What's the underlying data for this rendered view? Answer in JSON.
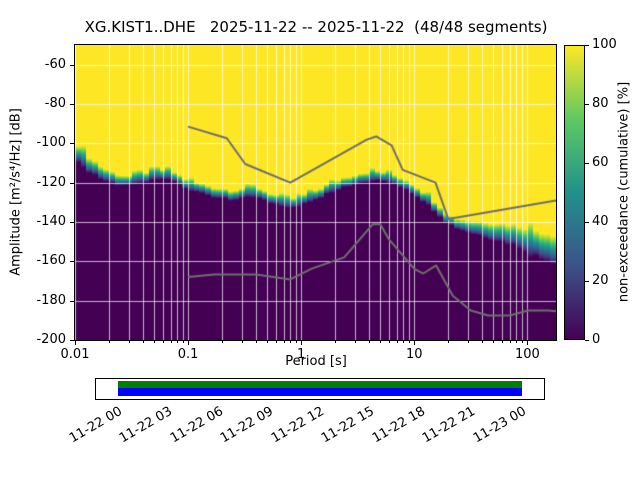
{
  "chart_data": {
    "type": "heatmap",
    "title": "XG.KIST1..DHE   2025-11-22 -- 2025-11-22  (48/48 segments)",
    "station_id": "XG.KIST1..DHE",
    "date_range": "2025-11-22 -- 2025-11-22",
    "segments": "48/48 segments",
    "xlabel": "Period [s]",
    "ylabel": "Amplitude [m²/s⁴/Hz] [dB]",
    "xlim": [
      0.01,
      179
    ],
    "ylim": [
      -200,
      -50
    ],
    "xscale": "log",
    "xticks": [
      0.01,
      0.1,
      1,
      10,
      100
    ],
    "xtick_labels": [
      "0.01",
      "0.1",
      "1",
      "10",
      "100"
    ],
    "yticks": [
      -200,
      -180,
      -160,
      -140,
      -120,
      -100,
      -80,
      -60
    ],
    "grid": true,
    "colormap": "viridis",
    "field_description": "cumulative non-exceedance percentage: 100% (yellow) above the PSD distribution, 0% (dark purple) below, narrow viridis transition band at the distribution",
    "transition_halfwidth_db": 2.4,
    "boundary_db_by_period": [
      [
        0.01,
        -103
      ],
      [
        0.013,
        -110
      ],
      [
        0.017,
        -115
      ],
      [
        0.022,
        -118
      ],
      [
        0.03,
        -119
      ],
      [
        0.04,
        -117
      ],
      [
        0.055,
        -115.5
      ],
      [
        0.07,
        -116
      ],
      [
        0.085,
        -119
      ],
      [
        0.1,
        -121
      ],
      [
        0.13,
        -123
      ],
      [
        0.18,
        -125
      ],
      [
        0.25,
        -126
      ],
      [
        0.32,
        -125
      ],
      [
        0.4,
        -124.5
      ],
      [
        0.5,
        -127
      ],
      [
        0.65,
        -129.5
      ],
      [
        0.8,
        -130.5
      ],
      [
        1.0,
        -129
      ],
      [
        1.3,
        -126.5
      ],
      [
        1.7,
        -123.5
      ],
      [
        2.2,
        -120.5
      ],
      [
        3,
        -118
      ],
      [
        4,
        -116.5
      ],
      [
        5,
        -116.5
      ],
      [
        6,
        -117.5
      ],
      [
        8,
        -120
      ],
      [
        10,
        -123.5
      ],
      [
        13,
        -128
      ],
      [
        16,
        -133
      ],
      [
        20,
        -139
      ],
      [
        25,
        -141
      ],
      [
        32,
        -142.5
      ],
      [
        45,
        -144
      ],
      [
        60,
        -145.5
      ],
      [
        80,
        -147
      ],
      [
        100,
        -149
      ],
      [
        130,
        -151.5
      ],
      [
        179,
        -154
      ]
    ],
    "noise_models": {
      "color": "#6e6e6e",
      "nhnm": [
        [
          0.1,
          -91.5
        ],
        [
          0.22,
          -97.4
        ],
        [
          0.32,
          -110.5
        ],
        [
          0.8,
          -120.0
        ],
        [
          3.8,
          -98.1
        ],
        [
          4.6,
          -96.5
        ],
        [
          6.3,
          -101.0
        ],
        [
          7.9,
          -113.5
        ],
        [
          15.4,
          -120.0
        ],
        [
          20.0,
          -138.5
        ],
        [
          179.0,
          -129.0
        ]
      ],
      "nlnm": [
        [
          0.1,
          -168.0
        ],
        [
          0.17,
          -166.7
        ],
        [
          0.4,
          -166.7
        ],
        [
          0.8,
          -169.2
        ],
        [
          1.24,
          -163.7
        ],
        [
          2.4,
          -158.0
        ],
        [
          4.3,
          -141.1
        ],
        [
          5.0,
          -141.1
        ],
        [
          6.0,
          -149.0
        ],
        [
          10.0,
          -163.8
        ],
        [
          12.0,
          -166.2
        ],
        [
          15.6,
          -162.1
        ],
        [
          21.9,
          -177.5
        ],
        [
          31.6,
          -185.0
        ],
        [
          45.0,
          -187.5
        ],
        [
          70.0,
          -187.5
        ],
        [
          101.0,
          -185.0
        ],
        [
          154.0,
          -185.0
        ],
        [
          179.0,
          -185.4
        ]
      ]
    },
    "colorbar": {
      "label": "non-exceedance (cumulative) [%]",
      "ticks": [
        0,
        20,
        40,
        60,
        80,
        100
      ],
      "stops": [
        {
          "t": 0,
          "color": "#440154"
        },
        {
          "t": 0.25,
          "color": "#3b528b"
        },
        {
          "t": 0.5,
          "color": "#21918c"
        },
        {
          "t": 0.75,
          "color": "#5ec962"
        },
        {
          "t": 1,
          "color": "#fde725"
        }
      ]
    },
    "timeline": {
      "tick_labels": [
        "11-22 00",
        "11-22 03",
        "11-22 06",
        "11-22 09",
        "11-22 12",
        "11-22 15",
        "11-22 18",
        "11-22 21",
        "11-23 00"
      ],
      "bars": [
        {
          "name": "coverage",
          "color": "#008000"
        },
        {
          "name": "data",
          "color": "#0000ff"
        }
      ]
    }
  }
}
